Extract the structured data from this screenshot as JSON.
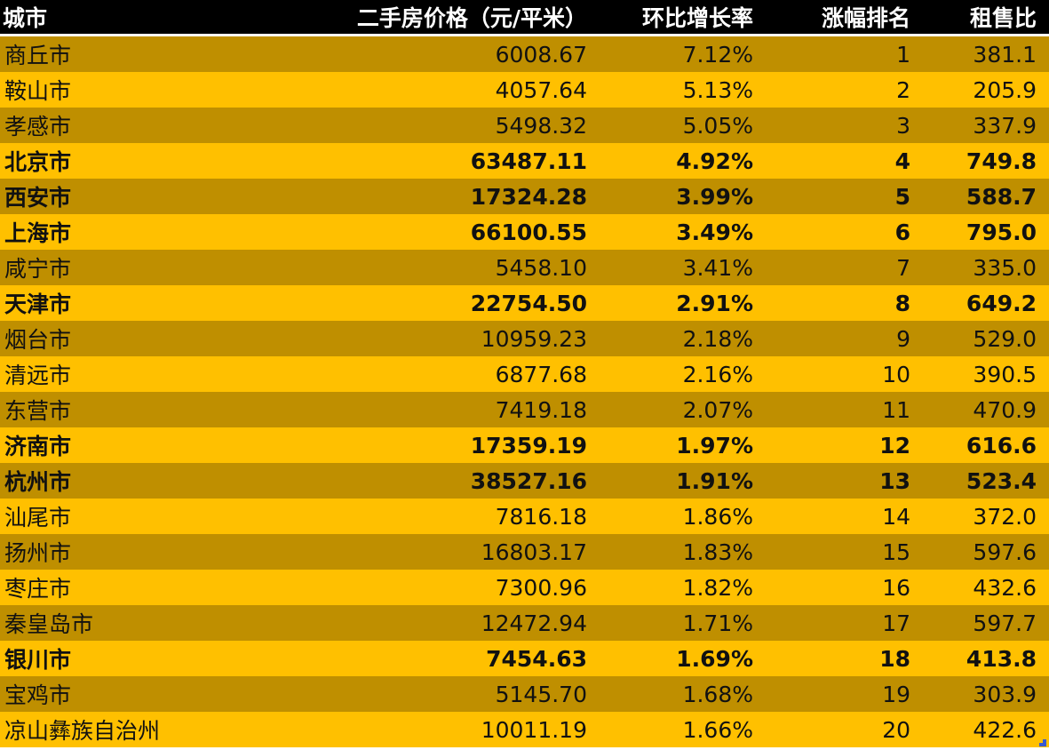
{
  "table": {
    "headers": [
      "城市",
      "二手房价格（元/平米）",
      "环比增长率",
      "涨幅排名",
      "租售比"
    ],
    "colors": {
      "header_bg": "#000000",
      "header_text": "#FFFFFF",
      "row_dark": "#BF8F00",
      "row_light": "#FFC000",
      "text": "#111111"
    },
    "rows": [
      {
        "city": "商丘市",
        "price": "6008.67",
        "growth": "7.12%",
        "rank": "1",
        "ratio": "381.1",
        "bold": false
      },
      {
        "city": "鞍山市",
        "price": "4057.64",
        "growth": "5.13%",
        "rank": "2",
        "ratio": "205.9",
        "bold": false
      },
      {
        "city": "孝感市",
        "price": "5498.32",
        "growth": "5.05%",
        "rank": "3",
        "ratio": "337.9",
        "bold": false
      },
      {
        "city": "北京市",
        "price": "63487.11",
        "growth": "4.92%",
        "rank": "4",
        "ratio": "749.8",
        "bold": true
      },
      {
        "city": "西安市",
        "price": "17324.28",
        "growth": "3.99%",
        "rank": "5",
        "ratio": "588.7",
        "bold": true
      },
      {
        "city": "上海市",
        "price": "66100.55",
        "growth": "3.49%",
        "rank": "6",
        "ratio": "795.0",
        "bold": true
      },
      {
        "city": "咸宁市",
        "price": "5458.10",
        "growth": "3.41%",
        "rank": "7",
        "ratio": "335.0",
        "bold": false
      },
      {
        "city": "天津市",
        "price": "22754.50",
        "growth": "2.91%",
        "rank": "8",
        "ratio": "649.2",
        "bold": true
      },
      {
        "city": "烟台市",
        "price": "10959.23",
        "growth": "2.18%",
        "rank": "9",
        "ratio": "529.0",
        "bold": false
      },
      {
        "city": "清远市",
        "price": "6877.68",
        "growth": "2.16%",
        "rank": "10",
        "ratio": "390.5",
        "bold": false
      },
      {
        "city": "东营市",
        "price": "7419.18",
        "growth": "2.07%",
        "rank": "11",
        "ratio": "470.9",
        "bold": false
      },
      {
        "city": "济南市",
        "price": "17359.19",
        "growth": "1.97%",
        "rank": "12",
        "ratio": "616.6",
        "bold": true
      },
      {
        "city": "杭州市",
        "price": "38527.16",
        "growth": "1.91%",
        "rank": "13",
        "ratio": "523.4",
        "bold": true
      },
      {
        "city": "汕尾市",
        "price": "7816.18",
        "growth": "1.86%",
        "rank": "14",
        "ratio": "372.0",
        "bold": false
      },
      {
        "city": "扬州市",
        "price": "16803.17",
        "growth": "1.83%",
        "rank": "15",
        "ratio": "597.6",
        "bold": false
      },
      {
        "city": "枣庄市",
        "price": "7300.96",
        "growth": "1.82%",
        "rank": "16",
        "ratio": "432.6",
        "bold": false
      },
      {
        "city": "秦皇岛市",
        "price": "12472.94",
        "growth": "1.71%",
        "rank": "17",
        "ratio": "597.7",
        "bold": false
      },
      {
        "city": "银川市",
        "price": "7454.63",
        "growth": "1.69%",
        "rank": "18",
        "ratio": "413.8",
        "bold": true
      },
      {
        "city": "宝鸡市",
        "price": "5145.70",
        "growth": "1.68%",
        "rank": "19",
        "ratio": "303.9",
        "bold": false
      },
      {
        "city": "凉山彝族自治州",
        "price": "10011.19",
        "growth": "1.66%",
        "rank": "20",
        "ratio": "422.6",
        "bold": false
      }
    ]
  }
}
